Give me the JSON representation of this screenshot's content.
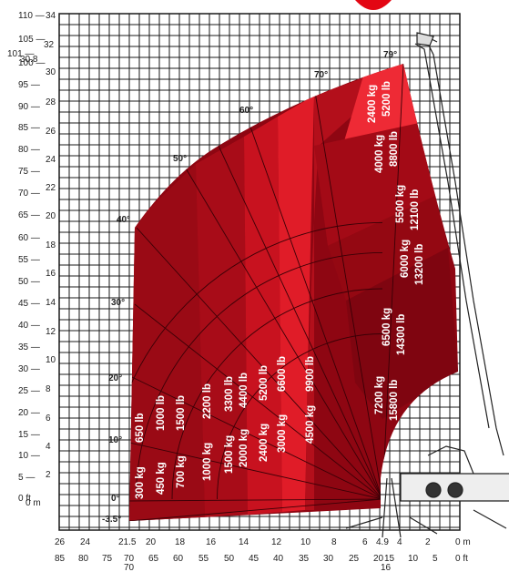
{
  "diagram": {
    "type": "load-chart",
    "left_axis_ft": [
      "110",
      "105",
      "101",
      "100",
      "95",
      "90",
      "85",
      "80",
      "75",
      "70",
      "65",
      "60",
      "55",
      "50",
      "45",
      "40",
      "35",
      "30",
      "25",
      "20",
      "15",
      "10",
      "5",
      "0 ft"
    ],
    "left_axis_m": [
      "34",
      "32",
      "30.8",
      "30",
      "28",
      "26",
      "24",
      "22",
      "20",
      "18",
      "16",
      "14",
      "12",
      "10",
      "8",
      "6",
      "4",
      "2",
      "0 m",
      "-3.5°"
    ],
    "bottom_axis_m": [
      "26",
      "24",
      "21.5",
      "20",
      "18",
      "16",
      "14",
      "12",
      "10",
      "8",
      "6",
      "4.9",
      "4",
      "2",
      "0 m"
    ],
    "bottom_axis_ft": [
      "85",
      "80",
      "75",
      "70",
      "70",
      "65",
      "60",
      "55",
      "50",
      "45",
      "40",
      "35",
      "30",
      "25",
      "20",
      "15",
      "16",
      "10",
      "5",
      "0 ft"
    ],
    "angles": [
      "79°",
      "70°",
      "60°",
      "50°",
      "40°",
      "30°",
      "20°",
      "10°",
      "0°"
    ],
    "zones": [
      {
        "kg": "300 kg",
        "lb": "650 lb"
      },
      {
        "kg": "450 kg",
        "lb": "1000 lb"
      },
      {
        "kg": "700 kg",
        "lb": "1500 lb"
      },
      {
        "kg": "1000 kg",
        "lb": "2200 lb"
      },
      {
        "kg": "1500 kg",
        "lb": "3300 lb"
      },
      {
        "kg": "2000 kg",
        "lb": "4400 lb"
      },
      {
        "kg": "2400 kg",
        "lb": "5200 lb"
      },
      {
        "kg": "3000 kg",
        "lb": "6600 lb"
      },
      {
        "kg": "4500 kg",
        "lb": "9900 lb"
      },
      {
        "kg": "7200 kg",
        "lb": "15800 lb"
      },
      {
        "kg": "6500 kg",
        "lb": "14300 lb"
      },
      {
        "kg": "6000 kg",
        "lb": "13200 lb"
      },
      {
        "kg": "5500 kg",
        "lb": "12100 lb"
      },
      {
        "kg": "4000 kg",
        "lb": "8800 lb"
      },
      {
        "kg": "2400 kg",
        "lb": "5200 lb"
      }
    ],
    "colors": {
      "dark": "#8e0612",
      "mid": "#c8121f",
      "bright": "#ef2a36",
      "accent": "#e30613"
    }
  }
}
